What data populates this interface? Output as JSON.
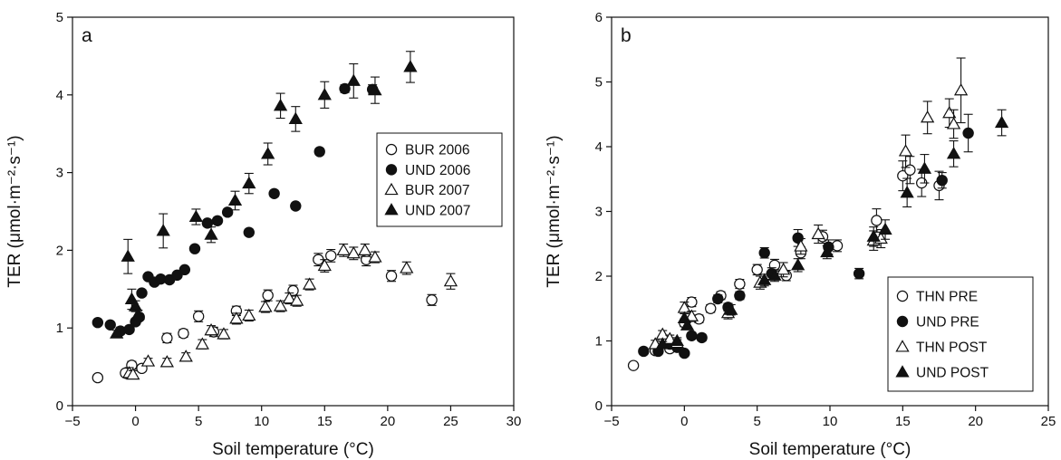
{
  "chart_data": [
    {
      "type": "scatter",
      "panel_label": "a",
      "xlabel": "Soil temperature (°C)",
      "ylabel": "TER (μmol·m⁻²·s⁻¹)",
      "xlim": [
        -5,
        30
      ],
      "ylim": [
        0,
        5
      ],
      "xticks": [
        "−5",
        "0",
        "5",
        "10",
        "15",
        "20",
        "25",
        "30"
      ],
      "yticks": [
        "0",
        "1",
        "2",
        "3",
        "4",
        "5"
      ],
      "grid": false,
      "legend_position": "right-middle",
      "series": [
        {
          "name": "BUR 2006",
          "marker": "circle-open",
          "points": [
            [
              -3.0,
              0.36,
              0.04
            ],
            [
              -0.8,
              0.42,
              0.04
            ],
            [
              -0.3,
              0.52,
              0.05
            ],
            [
              0.5,
              0.48,
              0.04
            ],
            [
              2.5,
              0.87,
              0.06
            ],
            [
              3.8,
              0.93,
              0.05
            ],
            [
              5.0,
              1.15,
              0.07
            ],
            [
              6.2,
              0.95,
              0.06
            ],
            [
              8.0,
              1.22,
              0.06
            ],
            [
              10.5,
              1.42,
              0.07
            ],
            [
              12.5,
              1.48,
              0.07
            ],
            [
              14.5,
              1.88,
              0.08
            ],
            [
              15.5,
              1.93,
              0.08
            ],
            [
              18.3,
              1.88,
              0.08
            ],
            [
              20.3,
              1.67,
              0.07
            ],
            [
              23.5,
              1.36,
              0.07
            ]
          ]
        },
        {
          "name": "UND 2006",
          "marker": "circle-filled",
          "points": [
            [
              -3.0,
              1.07,
              0.03
            ],
            [
              -2.0,
              1.04,
              0.03
            ],
            [
              -1.2,
              0.96,
              0.04
            ],
            [
              -0.5,
              0.98,
              0.03
            ],
            [
              0.0,
              1.08,
              0.04
            ],
            [
              0.3,
              1.14,
              0.04
            ],
            [
              0.5,
              1.45,
              0.04
            ],
            [
              1.0,
              1.66,
              0.03
            ],
            [
              1.5,
              1.59,
              0.03
            ],
            [
              2.0,
              1.63,
              0.03
            ],
            [
              2.7,
              1.62,
              0.03
            ],
            [
              3.3,
              1.68,
              0.03
            ],
            [
              3.9,
              1.75,
              0.03
            ],
            [
              4.7,
              2.02,
              0.03
            ],
            [
              5.7,
              2.35,
              0.04
            ],
            [
              6.5,
              2.38,
              0.04
            ],
            [
              7.3,
              2.49,
              0.04
            ],
            [
              9.0,
              2.23,
              0.04
            ],
            [
              11.0,
              2.73,
              0.04
            ],
            [
              12.7,
              2.57,
              0.04
            ],
            [
              14.6,
              3.27,
              0.04
            ],
            [
              16.6,
              4.08,
              0.05
            ],
            [
              18.8,
              4.07,
              0.06
            ]
          ]
        },
        {
          "name": "BUR 2007",
          "marker": "triangle-open",
          "points": [
            [
              -0.5,
              0.42,
              0.07
            ],
            [
              -0.2,
              0.4,
              0.05
            ],
            [
              1.0,
              0.57,
              0.04
            ],
            [
              2.5,
              0.56,
              0.05
            ],
            [
              4.0,
              0.63,
              0.05
            ],
            [
              5.3,
              0.79,
              0.06
            ],
            [
              6.0,
              0.97,
              0.06
            ],
            [
              7.0,
              0.92,
              0.06
            ],
            [
              8.0,
              1.12,
              0.07
            ],
            [
              9.0,
              1.16,
              0.07
            ],
            [
              10.3,
              1.27,
              0.07
            ],
            [
              11.5,
              1.28,
              0.07
            ],
            [
              12.2,
              1.38,
              0.07
            ],
            [
              12.8,
              1.35,
              0.07
            ],
            [
              13.8,
              1.56,
              0.07
            ],
            [
              15.0,
              1.8,
              0.08
            ],
            [
              16.5,
              2.0,
              0.08
            ],
            [
              17.3,
              1.96,
              0.08
            ],
            [
              18.2,
              2.0,
              0.08
            ],
            [
              19.0,
              1.91,
              0.07
            ],
            [
              21.5,
              1.77,
              0.08
            ],
            [
              25.0,
              1.6,
              0.1
            ]
          ]
        },
        {
          "name": "UND 2007",
          "marker": "triangle-filled",
          "points": [
            [
              -1.5,
              0.93,
              0.04
            ],
            [
              -0.6,
              1.92,
              0.22
            ],
            [
              -0.3,
              1.37,
              0.13
            ],
            [
              0.0,
              1.28,
              0.07
            ],
            [
              0.2,
              1.17,
              0.06
            ],
            [
              2.2,
              2.25,
              0.22
            ],
            [
              4.8,
              2.43,
              0.1
            ],
            [
              6.0,
              2.2,
              0.1
            ],
            [
              7.9,
              2.64,
              0.12
            ],
            [
              9.0,
              2.86,
              0.13
            ],
            [
              10.5,
              3.24,
              0.14
            ],
            [
              11.5,
              3.86,
              0.16
            ],
            [
              12.7,
              3.69,
              0.16
            ],
            [
              15.0,
              4.0,
              0.17
            ],
            [
              17.3,
              4.18,
              0.22
            ],
            [
              19.0,
              4.06,
              0.17
            ],
            [
              21.8,
              4.36,
              0.2
            ]
          ]
        }
      ]
    },
    {
      "type": "scatter",
      "panel_label": "b",
      "xlabel": "Soil temperature (°C)",
      "ylabel": "TER (μmol·m⁻²·s⁻¹)",
      "xlim": [
        -5,
        25
      ],
      "ylim": [
        0,
        6
      ],
      "xticks": [
        "−5",
        "0",
        "5",
        "10",
        "15",
        "20",
        "25"
      ],
      "yticks": [
        "0",
        "1",
        "2",
        "3",
        "4",
        "5",
        "6"
      ],
      "grid": false,
      "legend_position": "bottom-right",
      "series": [
        {
          "name": "THN PRE",
          "marker": "circle-open",
          "points": [
            [
              -3.5,
              0.62,
              0.04
            ],
            [
              -2.0,
              0.85,
              0.05
            ],
            [
              -1.0,
              0.88,
              0.05
            ],
            [
              0.0,
              1.28,
              0.06
            ],
            [
              0.5,
              1.6,
              0.07
            ],
            [
              1.0,
              1.34,
              0.06
            ],
            [
              1.8,
              1.5,
              0.06
            ],
            [
              2.5,
              1.7,
              0.06
            ],
            [
              3.8,
              1.88,
              0.07
            ],
            [
              5.0,
              2.1,
              0.08
            ],
            [
              6.2,
              2.17,
              0.09
            ],
            [
              7.0,
              2.01,
              0.08
            ],
            [
              8.0,
              2.36,
              0.09
            ],
            [
              9.5,
              2.61,
              0.1
            ],
            [
              10.5,
              2.47,
              0.09
            ],
            [
              13.2,
              2.86,
              0.18
            ],
            [
              15.0,
              3.55,
              0.23
            ],
            [
              15.5,
              3.64,
              0.21
            ],
            [
              16.3,
              3.44,
              0.21
            ],
            [
              17.5,
              3.4,
              0.22
            ]
          ]
        },
        {
          "name": "UND PRE",
          "marker": "circle-filled",
          "points": [
            [
              -2.8,
              0.84,
              0.04
            ],
            [
              -1.8,
              0.84,
              0.04
            ],
            [
              -1.0,
              0.95,
              0.04
            ],
            [
              -0.5,
              0.9,
              0.04
            ],
            [
              0.0,
              0.81,
              0.04
            ],
            [
              0.5,
              1.08,
              0.05
            ],
            [
              1.2,
              1.05,
              0.05
            ],
            [
              2.3,
              1.65,
              0.06
            ],
            [
              3.0,
              1.52,
              0.06
            ],
            [
              3.8,
              1.7,
              0.06
            ],
            [
              5.5,
              2.36,
              0.08
            ],
            [
              6.0,
              2.04,
              0.09
            ],
            [
              7.8,
              2.59,
              0.13
            ],
            [
              9.9,
              2.45,
              0.11
            ],
            [
              12.0,
              2.04,
              0.08
            ],
            [
              17.7,
              3.48,
              0.12
            ],
            [
              19.5,
              4.21,
              0.29
            ]
          ]
        },
        {
          "name": "THN POST",
          "marker": "triangle-open",
          "points": [
            [
              -2.0,
              0.95,
              0.06
            ],
            [
              -1.5,
              1.1,
              0.06
            ],
            [
              -1.0,
              1.03,
              0.06
            ],
            [
              -0.5,
              0.97,
              0.05
            ],
            [
              0.0,
              1.51,
              0.09
            ],
            [
              0.5,
              1.38,
              0.08
            ],
            [
              3.0,
              1.43,
              0.09
            ],
            [
              5.2,
              1.9,
              0.1
            ],
            [
              6.8,
              2.1,
              0.11
            ],
            [
              8.0,
              2.46,
              0.12
            ],
            [
              9.2,
              2.65,
              0.14
            ],
            [
              13.0,
              2.55,
              0.15
            ],
            [
              13.5,
              2.58,
              0.14
            ],
            [
              15.2,
              3.93,
              0.25
            ],
            [
              16.7,
              4.45,
              0.25
            ],
            [
              18.2,
              4.52,
              0.22
            ],
            [
              18.5,
              4.35,
              0.22
            ],
            [
              19.0,
              4.87,
              0.5
            ]
          ]
        },
        {
          "name": "UND POST",
          "marker": "triangle-filled",
          "points": [
            [
              -1.5,
              0.95,
              0.04
            ],
            [
              -0.5,
              1.0,
              0.05
            ],
            [
              0.0,
              1.35,
              0.07
            ],
            [
              0.2,
              1.24,
              0.06
            ],
            [
              3.2,
              1.48,
              0.08
            ],
            [
              5.5,
              1.94,
              0.09
            ],
            [
              6.2,
              2.01,
              0.09
            ],
            [
              7.8,
              2.17,
              0.1
            ],
            [
              9.8,
              2.37,
              0.1
            ],
            [
              13.0,
              2.61,
              0.15
            ],
            [
              13.8,
              2.72,
              0.15
            ],
            [
              15.3,
              3.29,
              0.22
            ],
            [
              16.5,
              3.66,
              0.22
            ],
            [
              18.5,
              3.89,
              0.2
            ],
            [
              21.8,
              4.37,
              0.2
            ]
          ]
        }
      ]
    }
  ]
}
